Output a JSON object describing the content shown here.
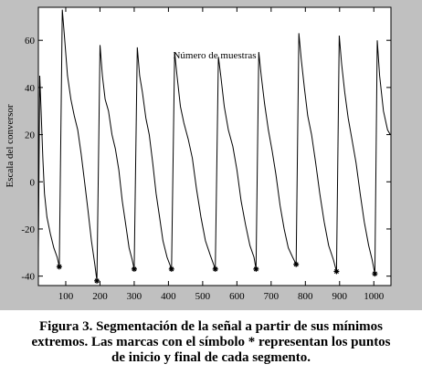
{
  "chart_data": {
    "type": "line",
    "x_label": "Número de muestras",
    "y_label": "Escala del conversor",
    "xlim": [
      20,
      1050
    ],
    "ylim": [
      -44,
      74
    ],
    "xticks": [
      100,
      200,
      300,
      400,
      500,
      600,
      700,
      800,
      900,
      1000
    ],
    "yticks": [
      -40,
      -20,
      0,
      20,
      40,
      60
    ],
    "series": [
      {
        "color": "#000000",
        "marker": "none",
        "x": [
          20,
          24,
          28,
          33,
          38,
          45,
          55,
          65,
          75,
          81,
          90,
          97,
          105,
          115,
          125,
          135,
          145,
          155,
          165,
          175,
          185,
          191,
          200,
          207,
          215,
          225,
          235,
          245,
          255,
          265,
          275,
          285,
          294,
          300,
          309,
          316,
          324,
          334,
          344,
          354,
          364,
          374,
          384,
          396,
          409,
          418,
          425,
          435,
          445,
          458,
          470,
          482,
          495,
          508,
          522,
          537,
          546,
          553,
          563,
          575,
          588,
          600,
          612,
          625,
          638,
          650,
          656,
          664,
          671,
          681,
          692,
          703,
          714,
          726,
          738,
          750,
          763,
          773,
          781,
          788,
          797,
          807,
          818,
          830,
          842,
          855,
          868,
          882,
          891,
          899,
          906,
          915,
          925,
          936,
          948,
          960,
          972,
          985,
          995,
          1003,
          1010,
          1017,
          1028,
          1040,
          1048
        ],
        "values": [
          -30,
          45,
          30,
          10,
          -5,
          -15,
          -22,
          -28,
          -32,
          -36,
          73,
          60,
          45,
          35,
          28,
          22,
          12,
          0,
          -12,
          -25,
          -35,
          -42,
          58,
          45,
          35,
          30,
          20,
          14,
          5,
          -8,
          -18,
          -28,
          -33,
          -37,
          57,
          45,
          38,
          27,
          20,
          8,
          -5,
          -15,
          -25,
          -32,
          -37,
          55,
          45,
          32,
          25,
          18,
          10,
          -3,
          -15,
          -25,
          -31,
          -37,
          53,
          45,
          32,
          22,
          15,
          5,
          -8,
          -18,
          -27,
          -32,
          -37,
          55,
          45,
          33,
          22,
          13,
          3,
          -10,
          -20,
          -28,
          -32,
          -35,
          63,
          52,
          40,
          28,
          20,
          8,
          -5,
          -17,
          -27,
          -33,
          -38,
          62,
          50,
          38,
          27,
          18,
          8,
          -5,
          -17,
          -27,
          -33,
          -39,
          60,
          45,
          30,
          22,
          20
        ]
      },
      {
        "color": "#000000",
        "marker": "*",
        "x": [
          81,
          191,
          300,
          409,
          537,
          656,
          773,
          891,
          1003
        ],
        "values": [
          -36,
          -42,
          -37,
          -37,
          -37,
          -37,
          -35,
          -38,
          -39
        ]
      }
    ],
    "caption": [
      "Figura 3. Segmentación de la señal a partir de sus mínimos",
      "extremos. Las marcas con el símbolo * representan los puntos",
      "de inicio y final de cada segmento."
    ]
  }
}
